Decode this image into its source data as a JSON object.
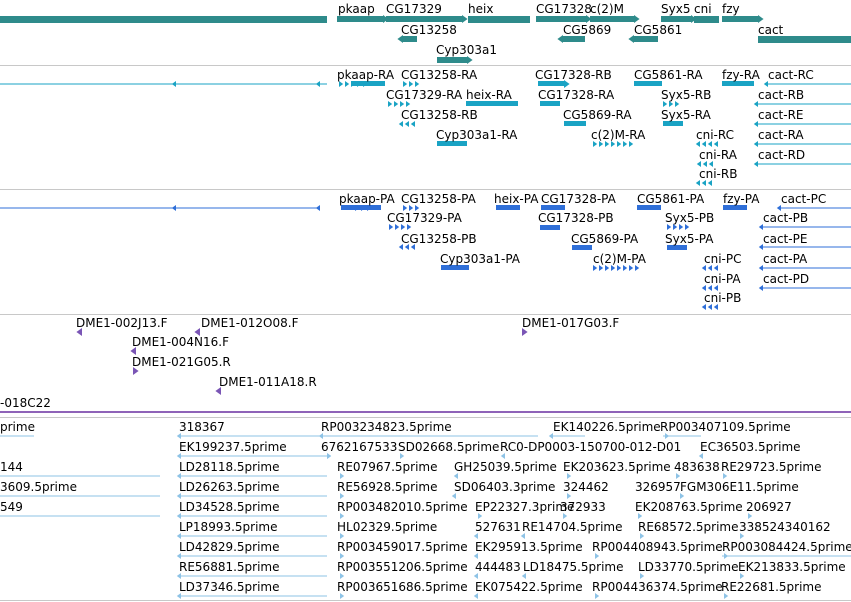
{
  "colors": {
    "gene": "#2e8b8b",
    "transcript": "#1aa3c4",
    "protein": "#2f6fd8",
    "clone": "#7a55b5",
    "est": "#8ec3e6",
    "separator": "#c8c8c8",
    "divider": "#8f63b8"
  },
  "genes_track": {
    "items": [
      {
        "label": "pkaap"
      },
      {
        "label": "CG17329"
      },
      {
        "label": "heix"
      },
      {
        "label": "CG17328"
      },
      {
        "label": "c(2)M"
      },
      {
        "label": "Syx5"
      },
      {
        "label": "cni"
      },
      {
        "label": "fzy"
      },
      {
        "label": "CG13258"
      },
      {
        "label": "CG5869"
      },
      {
        "label": "CG5861"
      },
      {
        "label": "cact"
      },
      {
        "label": "Cyp303a1"
      }
    ]
  },
  "transcripts_track": {
    "items": [
      {
        "label": "pkaap-RA"
      },
      {
        "label": "CG13258-RA"
      },
      {
        "label": "CG17328-RB"
      },
      {
        "label": "CG5861-RA"
      },
      {
        "label": "fzy-RA"
      },
      {
        "label": "cact-RC"
      },
      {
        "label": "CG17329-RA"
      },
      {
        "label": "heix-RA"
      },
      {
        "label": "CG17328-RA"
      },
      {
        "label": "Syx5-RB"
      },
      {
        "label": "cact-RB"
      },
      {
        "label": "CG13258-RB"
      },
      {
        "label": "CG5869-RA"
      },
      {
        "label": "Syx5-RA"
      },
      {
        "label": "cact-RE"
      },
      {
        "label": "Cyp303a1-RA"
      },
      {
        "label": "c(2)M-RA"
      },
      {
        "label": "cni-RC"
      },
      {
        "label": "cact-RA"
      },
      {
        "label": "cni-RA"
      },
      {
        "label": "cact-RD"
      },
      {
        "label": "cni-RB"
      }
    ]
  },
  "proteins_track": {
    "items": [
      {
        "label": "pkaap-PA"
      },
      {
        "label": "CG13258-PA"
      },
      {
        "label": "heix-PA"
      },
      {
        "label": "CG17328-PA"
      },
      {
        "label": "CG5861-PA"
      },
      {
        "label": "fzy-PA"
      },
      {
        "label": "cact-PC"
      },
      {
        "label": "CG17329-PA"
      },
      {
        "label": "CG17328-PB"
      },
      {
        "label": "Syx5-PB"
      },
      {
        "label": "cact-PB"
      },
      {
        "label": "CG13258-PB"
      },
      {
        "label": "CG5869-PA"
      },
      {
        "label": "Syx5-PA"
      },
      {
        "label": "cact-PE"
      },
      {
        "label": "Cyp303a1-PA"
      },
      {
        "label": "c(2)M-PA"
      },
      {
        "label": "cni-PC"
      },
      {
        "label": "cact-PA"
      },
      {
        "label": "cni-PA"
      },
      {
        "label": "cact-PD"
      },
      {
        "label": "cni-PB"
      }
    ]
  },
  "clones_track": {
    "items": [
      {
        "label": "DME1-002J13.F"
      },
      {
        "label": "DME1-012O08.F"
      },
      {
        "label": "DME1-017G03.F"
      },
      {
        "label": "DME1-004N16.F"
      },
      {
        "label": "DME1-021G05.R"
      },
      {
        "label": "DME1-011A18.R"
      },
      {
        "label": "-018C22"
      }
    ]
  },
  "ests_track": {
    "items": [
      {
        "label": "prime"
      },
      {
        "label": "318367"
      },
      {
        "label": "RP003234823.5prime"
      },
      {
        "label": "EK140226.5prime"
      },
      {
        "label": "RP003407109.5prime"
      },
      {
        "label": "EK199237.5prime"
      },
      {
        "label": "6762167533"
      },
      {
        "label": "SD02668.5prime"
      },
      {
        "label": "RC0-DP0003-150700-012-D01"
      },
      {
        "label": "EC36503.5prime"
      },
      {
        "label": "144"
      },
      {
        "label": "LD28118.5prime"
      },
      {
        "label": "RE07967.5prime"
      },
      {
        "label": "GH25039.5prime"
      },
      {
        "label": "EK203623.5prime"
      },
      {
        "label": "483638"
      },
      {
        "label": "RE29723.5prime"
      },
      {
        "label": "3609.5prime"
      },
      {
        "label": "LD26263.5prime"
      },
      {
        "label": "RE56928.5prime"
      },
      {
        "label": "SD06403.3prime"
      },
      {
        "label": "324462"
      },
      {
        "label": "326957"
      },
      {
        "label": "FGM306E11.5prime"
      },
      {
        "label": "549"
      },
      {
        "label": "LD34528.5prime"
      },
      {
        "label": "RP003482010.5prime"
      },
      {
        "label": "EP22327.3prime"
      },
      {
        "label": "372933"
      },
      {
        "label": "EK208763.5prime"
      },
      {
        "label": "206927"
      },
      {
        "label": "LP18993.5prime"
      },
      {
        "label": "HL02329.5prime"
      },
      {
        "label": "527631"
      },
      {
        "label": "RE14704.5prime"
      },
      {
        "label": "RE68572.5prime"
      },
      {
        "label": "338524340162"
      },
      {
        "label": "LD42829.5prime"
      },
      {
        "label": "RP003459017.5prime"
      },
      {
        "label": "EK295913.5prime"
      },
      {
        "label": "RP004408943.5prime"
      },
      {
        "label": "RP003084424.5prime"
      },
      {
        "label": "RE56881.5prime"
      },
      {
        "label": "RP003551206.5prime"
      },
      {
        "label": "444483"
      },
      {
        "label": "LD18475.5prime"
      },
      {
        "label": "LD33770.5prime"
      },
      {
        "label": "EK213833.5prime"
      },
      {
        "label": "LD37346.5prime"
      },
      {
        "label": "RP003651686.5prime"
      },
      {
        "label": "EK075422.5prime"
      },
      {
        "label": "RP004436374.5prime"
      },
      {
        "label": "RE22681.5prime"
      }
    ]
  }
}
